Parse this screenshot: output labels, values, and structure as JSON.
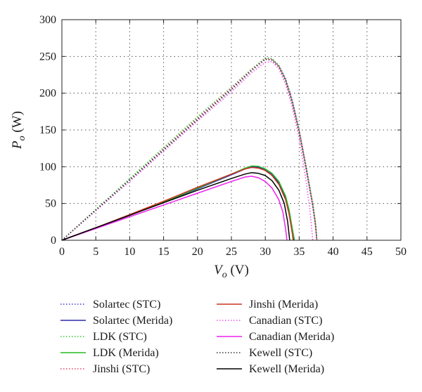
{
  "chart_data": {
    "type": "line",
    "xlabel": {
      "main": "V",
      "sub": "o",
      "unit": " (V)"
    },
    "ylabel": {
      "main": "P",
      "sub": "o",
      "unit": " (W)"
    },
    "xlim": [
      0,
      50
    ],
    "ylim": [
      0,
      300
    ],
    "xticks": [
      0,
      5,
      10,
      15,
      20,
      25,
      30,
      35,
      40,
      45,
      50
    ],
    "yticks": [
      0,
      50,
      100,
      150,
      200,
      250,
      300
    ],
    "grid": true,
    "legend_position": "bottom, two columns",
    "series": [
      {
        "name": "Solartec (STC)",
        "color": "#3b3bc8",
        "dash": "dotted",
        "points": [
          [
            0,
            0
          ],
          [
            5,
            41
          ],
          [
            10,
            82
          ],
          [
            15,
            123
          ],
          [
            20,
            165
          ],
          [
            25,
            206
          ],
          [
            28,
            232
          ],
          [
            30,
            248
          ],
          [
            31,
            247
          ],
          [
            32,
            238
          ],
          [
            33,
            220
          ],
          [
            34,
            190
          ],
          [
            35,
            150
          ],
          [
            36,
            102
          ],
          [
            37,
            50
          ],
          [
            37.4,
            25
          ],
          [
            37.6,
            0
          ]
        ]
      },
      {
        "name": "Solartec (Merida)",
        "color": "#2a2aa8",
        "dash": "solid",
        "points": [
          [
            0,
            0
          ],
          [
            5,
            17
          ],
          [
            10,
            34
          ],
          [
            15,
            52
          ],
          [
            20,
            70
          ],
          [
            25,
            89
          ],
          [
            27,
            97
          ],
          [
            28,
            100
          ],
          [
            29,
            99.5
          ],
          [
            30,
            96
          ],
          [
            31,
            90
          ],
          [
            32,
            78
          ],
          [
            33,
            58
          ],
          [
            33.5,
            40
          ],
          [
            34,
            12
          ],
          [
            34.2,
            0
          ]
        ]
      },
      {
        "name": "LDK (STC)",
        "color": "#33cc33",
        "dash": "dotted",
        "points": [
          [
            0,
            0
          ],
          [
            5,
            42
          ],
          [
            10,
            84
          ],
          [
            15,
            126
          ],
          [
            20,
            168
          ],
          [
            25,
            208
          ],
          [
            28,
            233
          ],
          [
            30,
            248
          ],
          [
            31,
            247
          ],
          [
            32,
            238
          ],
          [
            33,
            218
          ],
          [
            34,
            188
          ],
          [
            35,
            148
          ],
          [
            36,
            100
          ],
          [
            37,
            50
          ],
          [
            37.4,
            25
          ],
          [
            37.6,
            0
          ]
        ]
      },
      {
        "name": "LDK (Merida)",
        "color": "#22bb22",
        "dash": "solid",
        "points": [
          [
            0,
            0
          ],
          [
            5,
            17
          ],
          [
            10,
            34
          ],
          [
            15,
            52
          ],
          [
            20,
            71
          ],
          [
            25,
            90
          ],
          [
            27,
            98
          ],
          [
            28,
            101
          ],
          [
            29,
            100.5
          ],
          [
            30,
            97
          ],
          [
            31,
            91
          ],
          [
            32,
            80
          ],
          [
            33,
            60
          ],
          [
            33.5,
            42
          ],
          [
            34,
            15
          ],
          [
            34.3,
            0
          ]
        ]
      },
      {
        "name": "Jinshi (STC)",
        "color": "#dd4466",
        "dash": "dotted",
        "points": [
          [
            0,
            0
          ],
          [
            5,
            41
          ],
          [
            10,
            82
          ],
          [
            15,
            124
          ],
          [
            20,
            166
          ],
          [
            25,
            207
          ],
          [
            28,
            232
          ],
          [
            30,
            247
          ],
          [
            31,
            246
          ],
          [
            32,
            237
          ],
          [
            33,
            218
          ],
          [
            34,
            188
          ],
          [
            35,
            149
          ],
          [
            36,
            100
          ],
          [
            37,
            48
          ],
          [
            37.4,
            22
          ],
          [
            37.6,
            0
          ]
        ]
      },
      {
        "name": "Jinshi (Merida)",
        "color": "#cc3322",
        "dash": "solid",
        "points": [
          [
            0,
            0
          ],
          [
            5,
            17
          ],
          [
            10,
            35
          ],
          [
            15,
            53
          ],
          [
            20,
            72
          ],
          [
            25,
            90
          ],
          [
            27,
            97
          ],
          [
            28,
            99
          ],
          [
            29,
            98
          ],
          [
            30,
            95
          ],
          [
            31,
            88
          ],
          [
            32,
            76
          ],
          [
            33,
            55
          ],
          [
            33.5,
            36
          ],
          [
            34,
            8
          ],
          [
            34.1,
            0
          ]
        ]
      },
      {
        "name": "Canadian (STC)",
        "color": "#ee55ee",
        "dash": "dotted",
        "points": [
          [
            0,
            0
          ],
          [
            5,
            40
          ],
          [
            10,
            80
          ],
          [
            15,
            121
          ],
          [
            20,
            162
          ],
          [
            25,
            202
          ],
          [
            28,
            228
          ],
          [
            30,
            242
          ],
          [
            31,
            243
          ],
          [
            32,
            233
          ],
          [
            33,
            212
          ],
          [
            34,
            180
          ],
          [
            35,
            138
          ],
          [
            36,
            82
          ],
          [
            36.6,
            40
          ],
          [
            37,
            0
          ]
        ]
      },
      {
        "name": "Canadian (Merida)",
        "color": "#ee22ee",
        "dash": "solid",
        "points": [
          [
            0,
            0
          ],
          [
            5,
            16
          ],
          [
            10,
            32
          ],
          [
            15,
            48
          ],
          [
            20,
            64
          ],
          [
            25,
            80
          ],
          [
            27,
            86
          ],
          [
            28,
            87
          ],
          [
            29,
            85
          ],
          [
            30,
            80
          ],
          [
            31,
            71
          ],
          [
            32,
            55
          ],
          [
            32.6,
            38
          ],
          [
            33,
            15
          ],
          [
            33.2,
            0
          ]
        ]
      },
      {
        "name": "Kewell (STC)",
        "color": "#333333",
        "dash": "dotted",
        "points": [
          [
            0,
            0
          ],
          [
            5,
            41
          ],
          [
            10,
            82
          ],
          [
            15,
            123
          ],
          [
            20,
            164
          ],
          [
            25,
            205
          ],
          [
            28,
            231
          ],
          [
            30,
            246
          ],
          [
            31,
            245
          ],
          [
            32,
            236
          ],
          [
            33,
            217
          ],
          [
            34,
            186
          ],
          [
            35,
            146
          ],
          [
            36,
            98
          ],
          [
            37,
            46
          ],
          [
            37.4,
            20
          ],
          [
            37.6,
            0
          ]
        ]
      },
      {
        "name": "Kewell (Merida)",
        "color": "#000000",
        "dash": "solid",
        "points": [
          [
            0,
            0
          ],
          [
            5,
            17
          ],
          [
            10,
            34
          ],
          [
            15,
            51
          ],
          [
            20,
            68
          ],
          [
            25,
            84
          ],
          [
            27,
            90
          ],
          [
            28,
            92
          ],
          [
            29,
            91
          ],
          [
            30,
            88
          ],
          [
            31,
            81
          ],
          [
            32,
            68
          ],
          [
            32.8,
            50
          ],
          [
            33.3,
            25
          ],
          [
            33.6,
            0
          ]
        ]
      }
    ]
  }
}
